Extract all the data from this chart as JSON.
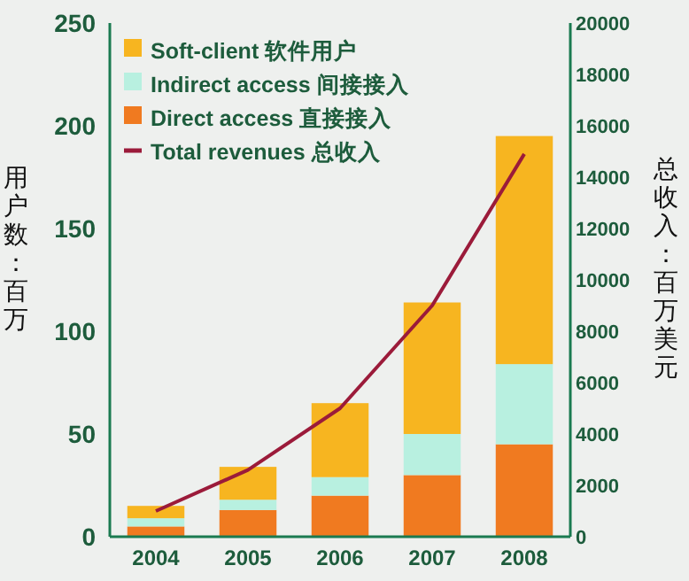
{
  "chart_data": {
    "type": "bar",
    "stacked": true,
    "legend": "top left",
    "categories": [
      "2004",
      "2005",
      "2006",
      "2007",
      "2008"
    ],
    "ylabel": "用户数：百万",
    "y2label": "总收入：百万美元",
    "ylim": [
      0,
      250
    ],
    "yticks": [
      0,
      50,
      100,
      150,
      200,
      250
    ],
    "y2lim": [
      0,
      20000
    ],
    "y2ticks": [
      0,
      2000,
      4000,
      6000,
      8000,
      10000,
      12000,
      14000,
      16000,
      18000,
      20000
    ],
    "series": [
      {
        "name": "Direct access 直接接入",
        "color": "#f07a20",
        "values": [
          5,
          13,
          20,
          30,
          45
        ]
      },
      {
        "name": "Indirect access 间接接入",
        "color": "#b8f0e0",
        "values": [
          4,
          5,
          9,
          20,
          39
        ]
      },
      {
        "name": "Soft-client 软件用户",
        "color": "#f7b520",
        "values": [
          6,
          16,
          36,
          64,
          111
        ]
      },
      {
        "name": "Total revenues 总收入",
        "type": "line",
        "axis": "y2",
        "color": "#9b1b3a",
        "values": [
          1000,
          2600,
          5000,
          9000,
          14900
        ]
      }
    ]
  }
}
